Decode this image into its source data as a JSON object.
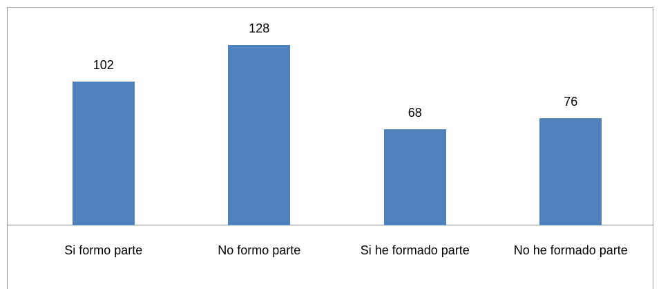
{
  "chart_data": {
    "type": "bar",
    "categories": [
      "Si formo parte",
      "No formo parte",
      "Si he formado parte",
      "No he formado parte"
    ],
    "values": [
      102,
      128,
      68,
      76
    ],
    "color": "#4f81bd"
  }
}
